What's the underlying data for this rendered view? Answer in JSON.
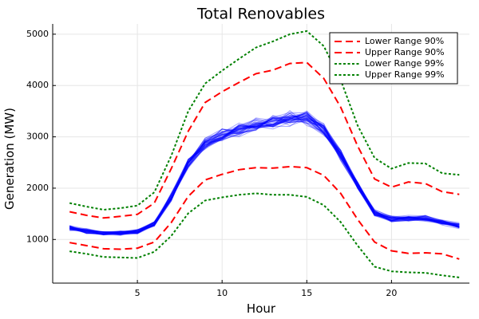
{
  "chart_data": {
    "type": "line",
    "title": "Total Renovables",
    "xlabel": "Hour",
    "ylabel": "Generation (MW)",
    "xlim": [
      0,
      24.6
    ],
    "ylim": [
      150,
      5200
    ],
    "xticks": [
      5,
      10,
      15,
      20
    ],
    "yticks": [
      1000,
      2000,
      3000,
      4000,
      5000
    ],
    "grid": true,
    "legend_position": "top-right",
    "x": [
      1,
      2,
      3,
      4,
      5,
      6,
      7,
      8,
      9,
      10,
      11,
      12,
      13,
      14,
      15,
      16,
      17,
      18,
      19,
      20,
      21,
      22,
      23,
      24
    ],
    "scenarios": {
      "color": "#0000ff",
      "count": 40,
      "base": [
        1220,
        1160,
        1120,
        1130,
        1150,
        1320,
        1820,
        2470,
        2860,
        3030,
        3150,
        3250,
        3300,
        3360,
        3380,
        3150,
        2650,
        2050,
        1520,
        1390,
        1420,
        1420,
        1330,
        1270
      ]
    },
    "series": [
      {
        "name": "Lower Range 90%",
        "color": "#ff0000",
        "style": "dashed",
        "values": [
          940,
          880,
          820,
          810,
          830,
          950,
          1330,
          1840,
          2160,
          2270,
          2360,
          2400,
          2390,
          2420,
          2400,
          2250,
          1900,
          1390,
          950,
          780,
          730,
          740,
          720,
          620
        ]
      },
      {
        "name": "Upper Range 90%",
        "color": "#ff0000",
        "style": "dashed",
        "values": [
          1540,
          1470,
          1420,
          1450,
          1490,
          1710,
          2380,
          3110,
          3670,
          3880,
          4060,
          4230,
          4300,
          4430,
          4450,
          4140,
          3580,
          2820,
          2180,
          2020,
          2120,
          2090,
          1930,
          1880
        ]
      },
      {
        "name": "Lower Range 99%",
        "color": "#008000",
        "style": "dotted",
        "values": [
          770,
          720,
          660,
          650,
          640,
          760,
          1070,
          1510,
          1760,
          1820,
          1870,
          1900,
          1870,
          1870,
          1830,
          1670,
          1340,
          880,
          470,
          380,
          360,
          350,
          300,
          260
        ]
      },
      {
        "name": "Upper Range 99%",
        "color": "#008000",
        "style": "dotted",
        "values": [
          1710,
          1640,
          1580,
          1610,
          1660,
          1920,
          2630,
          3500,
          4040,
          4290,
          4520,
          4740,
          4860,
          5000,
          5060,
          4770,
          4110,
          3220,
          2590,
          2380,
          2490,
          2480,
          2290,
          2260
        ]
      }
    ]
  }
}
